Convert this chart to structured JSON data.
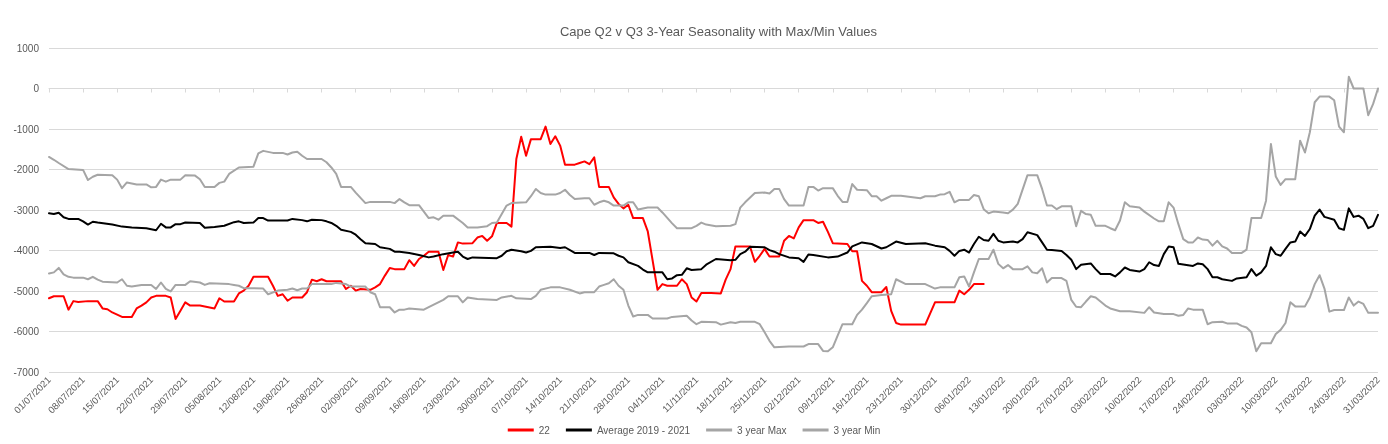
{
  "chart_data": {
    "type": "line",
    "title": "Cape Q2 v Q3 3-Year Seasonality with Max/Min Values",
    "xlim": [
      "2021-07-01",
      "2022-03-31"
    ],
    "xticks": [
      {
        "value": "2021-07-01",
        "label": "01/07/2021"
      },
      {
        "value": "2021-07-08",
        "label": "08/07/2021"
      },
      {
        "value": "2021-07-15",
        "label": "15/07/2021"
      },
      {
        "value": "2021-07-22",
        "label": "22/07/2021"
      },
      {
        "value": "2021-07-29",
        "label": "29/07/2021"
      },
      {
        "value": "2021-08-05",
        "label": "05/08/2021"
      },
      {
        "value": "2021-08-12",
        "label": "12/08/2021"
      },
      {
        "value": "2021-08-19",
        "label": "19/08/2021"
      },
      {
        "value": "2021-08-26",
        "label": "26/08/2021"
      },
      {
        "value": "2021-09-02",
        "label": "02/09/2021"
      },
      {
        "value": "2021-09-09",
        "label": "09/09/2021"
      },
      {
        "value": "2021-09-16",
        "label": "16/09/2021"
      },
      {
        "value": "2021-09-23",
        "label": "23/09/2021"
      },
      {
        "value": "2021-09-30",
        "label": "30/09/2021"
      },
      {
        "value": "2021-10-07",
        "label": "07/10/2021"
      },
      {
        "value": "2021-10-14",
        "label": "14/10/2021"
      },
      {
        "value": "2021-10-21",
        "label": "21/10/2021"
      },
      {
        "value": "2021-10-28",
        "label": "28/10/2021"
      },
      {
        "value": "2021-11-04",
        "label": "04/11/2021"
      },
      {
        "value": "2021-11-11",
        "label": "11/11/2021"
      },
      {
        "value": "2021-11-18",
        "label": "18/11/2021"
      },
      {
        "value": "2021-11-25",
        "label": "25/11/2021"
      },
      {
        "value": "2021-12-02",
        "label": "02/12/2021"
      },
      {
        "value": "2021-12-09",
        "label": "09/12/2021"
      },
      {
        "value": "2021-12-16",
        "label": "16/12/2021"
      },
      {
        "value": "2021-12-23",
        "label": "23/12/2021"
      },
      {
        "value": "2021-12-30",
        "label": "30/12/2021"
      },
      {
        "value": "2022-01-06",
        "label": "06/01/2022"
      },
      {
        "value": "2022-01-13",
        "label": "13/01/2022"
      },
      {
        "value": "2022-01-20",
        "label": "20/01/2022"
      },
      {
        "value": "2022-01-27",
        "label": "27/01/2022"
      },
      {
        "value": "2022-02-03",
        "label": "03/02/2022"
      },
      {
        "value": "2022-02-10",
        "label": "10/02/2022"
      },
      {
        "value": "2022-02-17",
        "label": "17/02/2022"
      },
      {
        "value": "2022-02-24",
        "label": "24/02/2022"
      },
      {
        "value": "2022-03-03",
        "label": "03/03/2022"
      },
      {
        "value": "2022-03-10",
        "label": "10/03/2022"
      },
      {
        "value": "2022-03-17",
        "label": "17/03/2022"
      },
      {
        "value": "2022-03-24",
        "label": "24/03/2022"
      },
      {
        "value": "2022-03-31",
        "label": "31/03/2022"
      }
    ],
    "ylim": [
      -7000,
      1000
    ],
    "yticks": [
      -7000,
      -6000,
      -5000,
      -4000,
      -3000,
      -2000,
      -1000,
      0,
      1000
    ],
    "grid": "y",
    "legend": "bottom",
    "marker": "none",
    "series": [
      {
        "name": "22",
        "color": "#ff0000",
        "x": [
          "2021-07-01",
          "2021-07-02",
          "2021-07-04",
          "2021-07-05",
          "2021-07-06",
          "2021-07-07",
          "2021-07-09",
          "2021-07-11",
          "2021-07-12",
          "2021-07-13",
          "2021-07-14",
          "2021-07-16",
          "2021-07-18",
          "2021-07-19",
          "2021-07-20",
          "2021-07-21",
          "2021-07-22",
          "2021-07-23",
          "2021-07-25",
          "2021-07-26",
          "2021-07-27",
          "2021-07-28",
          "2021-07-29",
          "2021-07-30",
          "2021-08-01",
          "2021-08-04",
          "2021-08-05",
          "2021-08-06",
          "2021-08-08",
          "2021-08-09",
          "2021-08-10",
          "2021-08-11",
          "2021-08-12",
          "2021-08-15",
          "2021-08-16",
          "2021-08-17",
          "2021-08-18",
          "2021-08-19",
          "2021-08-20",
          "2021-08-22",
          "2021-08-23",
          "2021-08-24",
          "2021-08-25",
          "2021-08-26",
          "2021-08-27",
          "2021-08-30",
          "2021-08-31",
          "2021-09-01",
          "2021-09-02",
          "2021-09-03",
          "2021-09-05",
          "2021-09-06",
          "2021-09-07",
          "2021-09-08",
          "2021-09-09",
          "2021-09-10",
          "2021-09-12",
          "2021-09-13",
          "2021-09-14",
          "2021-09-15",
          "2021-09-16",
          "2021-09-17",
          "2021-09-19",
          "2021-09-20",
          "2021-09-21",
          "2021-09-22",
          "2021-09-23",
          "2021-09-24",
          "2021-09-26",
          "2021-09-27",
          "2021-09-28",
          "2021-09-29",
          "2021-09-30",
          "2021-10-01",
          "2021-10-03",
          "2021-10-04",
          "2021-10-05",
          "2021-10-06",
          "2021-10-07",
          "2021-10-08",
          "2021-10-10",
          "2021-10-11",
          "2021-10-12",
          "2021-10-13",
          "2021-10-14",
          "2021-10-15",
          "2021-10-17",
          "2021-10-18",
          "2021-10-19",
          "2021-10-20",
          "2021-10-21",
          "2021-10-22",
          "2021-10-24",
          "2021-10-25",
          "2021-10-26",
          "2021-10-27",
          "2021-10-28",
          "2021-10-29",
          "2021-10-31",
          "2021-11-01",
          "2021-11-03",
          "2021-11-04",
          "2021-11-05",
          "2021-11-07",
          "2021-11-08",
          "2021-11-09",
          "2021-11-10",
          "2021-11-11",
          "2021-11-12",
          "2021-11-14",
          "2021-11-16",
          "2021-11-17",
          "2021-11-18",
          "2021-11-19",
          "2021-11-22",
          "2021-11-23",
          "2021-11-24",
          "2021-11-25",
          "2021-11-26",
          "2021-11-28",
          "2021-11-29",
          "2021-11-30",
          "2021-12-01",
          "2021-12-02",
          "2021-12-03",
          "2021-12-05",
          "2021-12-06",
          "2021-12-07",
          "2021-12-08",
          "2021-12-09",
          "2021-12-12",
          "2021-12-13",
          "2021-12-14",
          "2021-12-15",
          "2021-12-16",
          "2021-12-17",
          "2021-12-19",
          "2021-12-20",
          "2021-12-21",
          "2021-12-22",
          "2021-12-23",
          "2021-12-28",
          "2021-12-30",
          "2022-01-03",
          "2022-01-04",
          "2022-01-05",
          "2022-01-06",
          "2022-01-07",
          "2022-01-09"
        ],
        "values": [
          -5180,
          -5130,
          -5130,
          -5460,
          -5250,
          -5270,
          -5250,
          -5250,
          -5430,
          -5450,
          -5530,
          -5640,
          -5640,
          -5430,
          -5360,
          -5280,
          -5160,
          -5120,
          -5120,
          -5160,
          -5690,
          -5490,
          -5280,
          -5360,
          -5360,
          -5430,
          -5180,
          -5260,
          -5260,
          -5060,
          -4990,
          -4870,
          -4650,
          -4650,
          -4870,
          -5120,
          -5080,
          -5240,
          -5160,
          -5160,
          -5030,
          -4720,
          -4760,
          -4710,
          -4760,
          -4760,
          -4950,
          -4870,
          -4990,
          -4950,
          -4970,
          -4910,
          -4830,
          -4620,
          -4430,
          -4460,
          -4460,
          -4240,
          -4380,
          -4210,
          -4130,
          -4030,
          -4030,
          -4480,
          -4110,
          -4150,
          -3800,
          -3830,
          -3820,
          -3680,
          -3640,
          -3760,
          -3650,
          -3320,
          -3320,
          -3410,
          -1740,
          -1190,
          -1660,
          -1250,
          -1250,
          -940,
          -1370,
          -1180,
          -1410,
          -1880,
          -1880,
          -1840,
          -1800,
          -1870,
          -1700,
          -2430,
          -2430,
          -2690,
          -2850,
          -2960,
          -2870,
          -3200,
          -3200,
          -3530,
          -4970,
          -4830,
          -4870,
          -4870,
          -4710,
          -4830,
          -5160,
          -5260,
          -5050,
          -5050,
          -5060,
          -4720,
          -4460,
          -3900,
          -3900,
          -4280,
          -4130,
          -3960,
          -4150,
          -4150,
          -3760,
          -3640,
          -3700,
          -3430,
          -3250,
          -3250,
          -3320,
          -3290,
          -3540,
          -3820,
          -3840,
          -4020,
          -4020,
          -4750,
          -4870,
          -5030,
          -5030,
          -4900,
          -5490,
          -5790,
          -5830,
          -5830,
          -5280,
          -5280,
          -4990,
          -5080,
          -4970,
          -4830,
          -4830
        ]
      },
      {
        "name": "Average 2019 - 2021",
        "color": "#000000",
        "x": [
          "2021-07-01",
          "2021-07-02",
          "2021-07-03",
          "2021-07-04",
          "2021-07-05",
          "2021-07-07",
          "2021-07-08",
          "2021-07-09",
          "2021-07-10",
          "2021-07-11",
          "2021-07-14",
          "2021-07-16",
          "2021-07-18",
          "2021-07-21",
          "2021-07-23",
          "2021-07-24",
          "2021-07-25",
          "2021-07-26",
          "2021-07-27",
          "2021-07-28",
          "2021-07-29",
          "2021-08-01",
          "2021-08-02",
          "2021-08-04",
          "2021-08-06",
          "2021-08-08",
          "2021-08-09",
          "2021-08-10",
          "2021-08-12",
          "2021-08-13",
          "2021-08-14",
          "2021-08-15",
          "2021-08-19",
          "2021-08-20",
          "2021-08-22",
          "2021-08-23",
          "2021-08-24",
          "2021-08-26",
          "2021-08-27",
          "2021-08-28",
          "2021-08-29",
          "2021-08-30",
          "2021-09-01",
          "2021-09-02",
          "2021-09-03",
          "2021-09-04",
          "2021-09-06",
          "2021-09-07",
          "2021-09-09",
          "2021-09-10",
          "2021-09-11",
          "2021-09-13",
          "2021-09-15",
          "2021-09-17",
          "2021-09-18",
          "2021-09-20",
          "2021-09-22",
          "2021-09-23",
          "2021-09-24",
          "2021-09-25",
          "2021-09-26",
          "2021-10-01",
          "2021-10-02",
          "2021-10-03",
          "2021-10-04",
          "2021-10-06",
          "2021-10-07",
          "2021-10-08",
          "2021-10-09",
          "2021-10-12",
          "2021-10-14",
          "2021-10-15",
          "2021-10-17",
          "2021-10-20",
          "2021-10-21",
          "2021-10-22",
          "2021-10-25",
          "2021-10-26",
          "2021-10-27",
          "2021-10-28",
          "2021-10-30",
          "2021-10-31",
          "2021-11-01",
          "2021-11-04",
          "2021-11-05",
          "2021-11-06",
          "2021-11-07",
          "2021-11-08",
          "2021-11-09",
          "2021-11-10",
          "2021-11-12",
          "2021-11-13",
          "2021-11-15",
          "2021-11-18",
          "2021-11-19",
          "2021-11-20",
          "2021-11-21",
          "2021-11-22",
          "2021-11-25",
          "2021-11-26",
          "2021-11-27",
          "2021-11-28",
          "2021-11-30",
          "2021-12-02",
          "2021-12-03",
          "2021-12-04",
          "2021-12-05",
          "2021-12-08",
          "2021-12-10",
          "2021-12-12",
          "2021-12-13",
          "2021-12-15",
          "2021-12-17",
          "2021-12-19",
          "2021-12-20",
          "2021-12-22",
          "2021-12-24",
          "2021-12-28",
          "2021-12-30",
          "2022-01-01",
          "2022-01-02",
          "2022-01-03",
          "2022-01-04",
          "2022-01-05",
          "2022-01-06",
          "2022-01-07",
          "2022-01-08",
          "2022-01-09",
          "2022-01-10",
          "2022-01-11",
          "2022-01-12",
          "2022-01-13",
          "2022-01-15",
          "2022-01-16",
          "2022-01-17",
          "2022-01-18",
          "2022-01-20",
          "2022-01-21",
          "2022-01-22",
          "2022-01-23",
          "2022-01-25",
          "2022-01-26",
          "2022-01-27",
          "2022-01-28",
          "2022-01-29",
          "2022-01-31",
          "2022-02-01",
          "2022-02-02",
          "2022-02-04",
          "2022-02-05",
          "2022-02-06",
          "2022-02-07",
          "2022-02-08",
          "2022-02-10",
          "2022-02-11",
          "2022-02-12",
          "2022-02-13",
          "2022-02-14",
          "2022-02-15",
          "2022-02-16",
          "2022-02-17",
          "2022-02-18",
          "2022-02-21",
          "2022-02-22",
          "2022-02-23",
          "2022-02-24",
          "2022-02-25",
          "2022-02-26",
          "2022-02-27",
          "2022-03-01",
          "2022-03-02",
          "2022-03-04",
          "2022-03-05",
          "2022-03-06",
          "2022-03-07",
          "2022-03-08",
          "2022-03-09",
          "2022-03-10",
          "2022-03-11",
          "2022-03-12",
          "2022-03-13",
          "2022-03-14",
          "2022-03-15",
          "2022-03-16",
          "2022-03-17",
          "2022-03-18",
          "2022-03-19",
          "2022-03-20",
          "2022-03-22",
          "2022-03-23",
          "2022-03-24",
          "2022-03-25",
          "2022-03-26",
          "2022-03-27",
          "2022-03-28",
          "2022-03-29",
          "2022-03-30",
          "2022-03-31"
        ],
        "values": [
          -3080,
          -3100,
          -3070,
          -3180,
          -3220,
          -3220,
          -3280,
          -3360,
          -3290,
          -3310,
          -3360,
          -3410,
          -3430,
          -3450,
          -3500,
          -3340,
          -3430,
          -3430,
          -3350,
          -3350,
          -3310,
          -3320,
          -3440,
          -3420,
          -3390,
          -3300,
          -3280,
          -3320,
          -3310,
          -3200,
          -3200,
          -3260,
          -3260,
          -3220,
          -3250,
          -3280,
          -3240,
          -3250,
          -3280,
          -3320,
          -3390,
          -3490,
          -3540,
          -3610,
          -3720,
          -3820,
          -3840,
          -3920,
          -3960,
          -4030,
          -4030,
          -4060,
          -4110,
          -4170,
          -4150,
          -4090,
          -4050,
          -4030,
          -4150,
          -4210,
          -4170,
          -4190,
          -4130,
          -4020,
          -3980,
          -4020,
          -4050,
          -4010,
          -3920,
          -3910,
          -3940,
          -3920,
          -4060,
          -4060,
          -4110,
          -4060,
          -4070,
          -4130,
          -4170,
          -4290,
          -4380,
          -4470,
          -4540,
          -4540,
          -4710,
          -4690,
          -4610,
          -4600,
          -4440,
          -4480,
          -4460,
          -4350,
          -4210,
          -4240,
          -4230,
          -4090,
          -4030,
          -3910,
          -3920,
          -3990,
          -4030,
          -4090,
          -4170,
          -4190,
          -4280,
          -4100,
          -4110,
          -4170,
          -4150,
          -4050,
          -3900,
          -3800,
          -3840,
          -3950,
          -3920,
          -3780,
          -3840,
          -3820,
          -3880,
          -3920,
          -4010,
          -4130,
          -4010,
          -3980,
          -4050,
          -3840,
          -3660,
          -3740,
          -3760,
          -3590,
          -3760,
          -3800,
          -3780,
          -3800,
          -3720,
          -3550,
          -3620,
          -3800,
          -3980,
          -3990,
          -4010,
          -4110,
          -4230,
          -4460,
          -4350,
          -4320,
          -4460,
          -4580,
          -4580,
          -4640,
          -4540,
          -4420,
          -4480,
          -4520,
          -4460,
          -4290,
          -4360,
          -4380,
          -4090,
          -3900,
          -3920,
          -4330,
          -4380,
          -4320,
          -4340,
          -4460,
          -4660,
          -4660,
          -4710,
          -4750,
          -4690,
          -4660,
          -4460,
          -4620,
          -4540,
          -4380,
          -3920,
          -4090,
          -4130,
          -3960,
          -3800,
          -3780,
          -3530,
          -3640,
          -3470,
          -3140,
          -2990,
          -3170,
          -3240,
          -3450,
          -3490,
          -2960,
          -3170,
          -3140,
          -3220,
          -3450,
          -3390,
          -3120
        ]
      },
      {
        "name": "3 year Max",
        "color": "#a5a5a5",
        "x": [
          "2021-07-01",
          "2021-07-02",
          "2021-07-03",
          "2021-07-05",
          "2021-07-08",
          "2021-07-09",
          "2021-07-10",
          "2021-07-11",
          "2021-07-14",
          "2021-07-15",
          "2021-07-16",
          "2021-07-17",
          "2021-07-19",
          "2021-07-21",
          "2021-07-22",
          "2021-07-23",
          "2021-07-24",
          "2021-07-25",
          "2021-07-26",
          "2021-07-28",
          "2021-07-29",
          "2021-07-31",
          "2021-08-01",
          "2021-08-02",
          "2021-08-04",
          "2021-08-05",
          "2021-08-06",
          "2021-08-07",
          "2021-08-09",
          "2021-08-12",
          "2021-08-13",
          "2021-08-14",
          "2021-08-16",
          "2021-08-18",
          "2021-08-19",
          "2021-08-20",
          "2021-08-21",
          "2021-08-22",
          "2021-08-23",
          "2021-08-26",
          "2021-08-27",
          "2021-08-28",
          "2021-08-29",
          "2021-08-30",
          "2021-09-01",
          "2021-09-02",
          "2021-09-04",
          "2021-09-05",
          "2021-09-09",
          "2021-09-10",
          "2021-09-11",
          "2021-09-12",
          "2021-09-13",
          "2021-09-15",
          "2021-09-16",
          "2021-09-17",
          "2021-09-18",
          "2021-09-19",
          "2021-09-20",
          "2021-09-22",
          "2021-09-24",
          "2021-09-25",
          "2021-09-27",
          "2021-09-29",
          "2021-09-30",
          "2021-10-01",
          "2021-10-03",
          "2021-10-04",
          "2021-10-07",
          "2021-10-08",
          "2021-10-09",
          "2021-10-10",
          "2021-10-11",
          "2021-10-13",
          "2021-10-14",
          "2021-10-15",
          "2021-10-16",
          "2021-10-17",
          "2021-10-19",
          "2021-10-20",
          "2021-10-21",
          "2021-10-22",
          "2021-10-23",
          "2021-10-24",
          "2021-10-25",
          "2021-10-27",
          "2021-10-28",
          "2021-10-29",
          "2021-10-30",
          "2021-11-01",
          "2021-11-03",
          "2021-11-04",
          "2021-11-06",
          "2021-11-07",
          "2021-11-10",
          "2021-11-11",
          "2021-11-12",
          "2021-11-13",
          "2021-11-15",
          "2021-11-18",
          "2021-11-19",
          "2021-11-20",
          "2021-11-21",
          "2021-11-23",
          "2021-11-25",
          "2021-11-26",
          "2021-11-27",
          "2021-11-28",
          "2021-11-29",
          "2021-11-30",
          "2021-12-03",
          "2021-12-04",
          "2021-12-05",
          "2021-12-06",
          "2021-12-07",
          "2021-12-09",
          "2021-12-10",
          "2021-12-11",
          "2021-12-12",
          "2021-12-13",
          "2021-12-14",
          "2021-12-16",
          "2021-12-17",
          "2021-12-18",
          "2021-12-19",
          "2021-12-20",
          "2021-12-21",
          "2021-12-23",
          "2021-12-27",
          "2021-12-28",
          "2021-12-30",
          "2021-12-31",
          "2022-01-01",
          "2022-01-02",
          "2022-01-03",
          "2022-01-04",
          "2022-01-06",
          "2022-01-07",
          "2022-01-08",
          "2022-01-09",
          "2022-01-10",
          "2022-01-11",
          "2022-01-13",
          "2022-01-14",
          "2022-01-15",
          "2022-01-16",
          "2022-01-18",
          "2022-01-20",
          "2022-01-21",
          "2022-01-22",
          "2022-01-23",
          "2022-01-24",
          "2022-01-25",
          "2022-01-27",
          "2022-01-28",
          "2022-01-29",
          "2022-01-30",
          "2022-01-31",
          "2022-02-01",
          "2022-02-03",
          "2022-02-04",
          "2022-02-05",
          "2022-02-06",
          "2022-02-07",
          "2022-02-08",
          "2022-02-10",
          "2022-02-11",
          "2022-02-13",
          "2022-02-14",
          "2022-02-15",
          "2022-02-16",
          "2022-02-17",
          "2022-02-18",
          "2022-02-19",
          "2022-02-20",
          "2022-02-21",
          "2022-02-22",
          "2022-02-23",
          "2022-02-24",
          "2022-02-25",
          "2022-02-26",
          "2022-02-27",
          "2022-02-28",
          "2022-03-01",
          "2022-03-03",
          "2022-03-04",
          "2022-03-05",
          "2022-03-07",
          "2022-03-08",
          "2022-03-09",
          "2022-03-10",
          "2022-03-11",
          "2022-03-12",
          "2022-03-14",
          "2022-03-15",
          "2022-03-16",
          "2022-03-17",
          "2022-03-18",
          "2022-03-19",
          "2022-03-21",
          "2022-03-22",
          "2022-03-23",
          "2022-03-24",
          "2022-03-25",
          "2022-03-26",
          "2022-03-28",
          "2022-03-29",
          "2022-03-30",
          "2022-03-31"
        ],
        "values": [
          -1690,
          -1760,
          -1840,
          -1990,
          -2010,
          -2260,
          -2180,
          -2130,
          -2140,
          -2250,
          -2460,
          -2320,
          -2370,
          -2370,
          -2440,
          -2430,
          -2250,
          -2300,
          -2250,
          -2250,
          -2140,
          -2150,
          -2240,
          -2430,
          -2430,
          -2330,
          -2300,
          -2110,
          -1950,
          -1930,
          -1600,
          -1540,
          -1590,
          -1590,
          -1630,
          -1580,
          -1560,
          -1660,
          -1740,
          -1740,
          -1820,
          -1950,
          -2110,
          -2430,
          -2430,
          -2570,
          -2830,
          -2800,
          -2800,
          -2830,
          -2730,
          -2810,
          -2880,
          -2880,
          -3040,
          -3200,
          -3180,
          -3240,
          -3140,
          -3140,
          -3320,
          -3430,
          -3430,
          -3400,
          -3320,
          -3310,
          -2890,
          -2830,
          -2810,
          -2660,
          -2480,
          -2580,
          -2620,
          -2620,
          -2580,
          -2500,
          -2630,
          -2730,
          -2710,
          -2710,
          -2870,
          -2810,
          -2770,
          -2810,
          -2890,
          -2890,
          -2810,
          -2810,
          -2990,
          -2940,
          -2940,
          -3060,
          -3330,
          -3450,
          -3450,
          -3390,
          -3310,
          -3360,
          -3400,
          -3390,
          -3350,
          -2940,
          -2810,
          -2580,
          -2570,
          -2590,
          -2480,
          -2480,
          -2730,
          -2890,
          -2890,
          -2430,
          -2430,
          -2520,
          -2460,
          -2460,
          -2650,
          -2800,
          -2800,
          -2360,
          -2500,
          -2510,
          -2660,
          -2660,
          -2770,
          -2710,
          -2650,
          -2650,
          -2710,
          -2660,
          -2660,
          -2620,
          -2610,
          -2550,
          -2810,
          -2750,
          -2750,
          -2630,
          -2660,
          -2980,
          -3080,
          -3040,
          -3060,
          -3080,
          -2990,
          -2850,
          -2140,
          -2140,
          -2480,
          -2890,
          -2890,
          -2980,
          -2910,
          -2910,
          -3400,
          -3020,
          -3100,
          -3120,
          -3390,
          -3390,
          -3450,
          -3500,
          -3260,
          -2810,
          -2910,
          -2940,
          -3040,
          -3210,
          -3280,
          -3280,
          -2810,
          -2940,
          -3350,
          -3720,
          -3800,
          -3800,
          -3680,
          -3730,
          -3740,
          -3880,
          -3760,
          -3900,
          -3950,
          -4060,
          -4060,
          -3980,
          -3200,
          -3200,
          -2770,
          -1370,
          -2170,
          -2380,
          -2240,
          -2240,
          -1290,
          -1580,
          -1080,
          -340,
          -200,
          -200,
          -290,
          -940,
          -1080,
          290,
          0,
          0,
          -660,
          -380,
          0
        ]
      },
      {
        "name": "3 year Min",
        "color": "#a5a5a5",
        "x": [
          "2021-07-01",
          "2021-07-02",
          "2021-07-03",
          "2021-07-04",
          "2021-07-05",
          "2021-07-06",
          "2021-07-08",
          "2021-07-09",
          "2021-07-10",
          "2021-07-11",
          "2021-07-12",
          "2021-07-15",
          "2021-07-16",
          "2021-07-17",
          "2021-07-18",
          "2021-07-20",
          "2021-07-22",
          "2021-07-23",
          "2021-07-24",
          "2021-07-25",
          "2021-07-26",
          "2021-07-27",
          "2021-07-29",
          "2021-07-30",
          "2021-08-01",
          "2021-08-02",
          "2021-08-03",
          "2021-08-07",
          "2021-08-08",
          "2021-08-09",
          "2021-08-10",
          "2021-08-12",
          "2021-08-14",
          "2021-08-15",
          "2021-08-17",
          "2021-08-19",
          "2021-08-20",
          "2021-08-21",
          "2021-08-22",
          "2021-08-23",
          "2021-08-24",
          "2021-08-28",
          "2021-08-29",
          "2021-08-31",
          "2021-09-01",
          "2021-09-04",
          "2021-09-05",
          "2021-09-06",
          "2021-09-07",
          "2021-09-09",
          "2021-09-10",
          "2021-09-11",
          "2021-09-12",
          "2021-09-13",
          "2021-09-16",
          "2021-09-17",
          "2021-09-20",
          "2021-09-21",
          "2021-09-23",
          "2021-09-24",
          "2021-09-25",
          "2021-09-27",
          "2021-10-01",
          "2021-10-02",
          "2021-10-04",
          "2021-10-05",
          "2021-10-08",
          "2021-10-09",
          "2021-10-10",
          "2021-10-12",
          "2021-10-14",
          "2021-10-16",
          "2021-10-18",
          "2021-10-19",
          "2021-10-21",
          "2021-10-22",
          "2021-10-23",
          "2021-10-24",
          "2021-10-25",
          "2021-10-26",
          "2021-10-27",
          "2021-10-28",
          "2021-10-29",
          "2021-10-30",
          "2021-11-01",
          "2021-11-02",
          "2021-11-05",
          "2021-11-06",
          "2021-11-09",
          "2021-11-10",
          "2021-11-11",
          "2021-11-12",
          "2021-11-15",
          "2021-11-16",
          "2021-11-18",
          "2021-11-19",
          "2021-11-20",
          "2021-11-23",
          "2021-11-24",
          "2021-11-25",
          "2021-11-26",
          "2021-11-27",
          "2021-11-30",
          "2021-12-03",
          "2021-12-04",
          "2021-12-06",
          "2021-12-07",
          "2021-12-08",
          "2021-12-09",
          "2021-12-10",
          "2021-12-11",
          "2021-12-13",
          "2021-12-14",
          "2021-12-15",
          "2021-12-16",
          "2021-12-17",
          "2021-12-19",
          "2021-12-21",
          "2021-12-22",
          "2021-12-24",
          "2021-12-28",
          "2021-12-30",
          "2021-12-31",
          "2022-01-03",
          "2022-01-04",
          "2022-01-05",
          "2022-01-06",
          "2022-01-07",
          "2022-01-08",
          "2022-01-10",
          "2022-01-11",
          "2022-01-12",
          "2022-01-13",
          "2022-01-14",
          "2022-01-15",
          "2022-01-17",
          "2022-01-18",
          "2022-01-19",
          "2022-01-20",
          "2022-01-21",
          "2022-01-22",
          "2022-01-23",
          "2022-01-25",
          "2022-01-26",
          "2022-01-27",
          "2022-01-28",
          "2022-01-29",
          "2022-01-30",
          "2022-01-31",
          "2022-02-01",
          "2022-02-03",
          "2022-02-04",
          "2022-02-06",
          "2022-02-08",
          "2022-02-11",
          "2022-02-12",
          "2022-02-13",
          "2022-02-15",
          "2022-02-17",
          "2022-02-18",
          "2022-02-19",
          "2022-02-20",
          "2022-02-21",
          "2022-02-23",
          "2022-02-24",
          "2022-02-25",
          "2022-02-27",
          "2022-02-28",
          "2022-03-02",
          "2022-03-03",
          "2022-03-04",
          "2022-03-05",
          "2022-03-06",
          "2022-03-07",
          "2022-03-09",
          "2022-03-10",
          "2022-03-11",
          "2022-03-12",
          "2022-03-13",
          "2022-03-14",
          "2022-03-16",
          "2022-03-17",
          "2022-03-18",
          "2022-03-19",
          "2022-03-20",
          "2022-03-21",
          "2022-03-22",
          "2022-03-24",
          "2022-03-25",
          "2022-03-26",
          "2022-03-27",
          "2022-03-28",
          "2022-03-29",
          "2022-03-31"
        ],
        "values": [
          -4570,
          -4540,
          -4430,
          -4590,
          -4650,
          -4670,
          -4670,
          -4710,
          -4650,
          -4720,
          -4770,
          -4790,
          -4710,
          -4870,
          -4890,
          -4850,
          -4850,
          -4950,
          -4790,
          -4950,
          -5010,
          -4850,
          -4850,
          -4760,
          -4790,
          -4850,
          -4810,
          -4830,
          -4850,
          -4870,
          -4930,
          -4930,
          -4940,
          -5080,
          -4990,
          -4970,
          -4940,
          -4980,
          -4940,
          -4940,
          -4830,
          -4830,
          -4800,
          -4830,
          -4890,
          -4890,
          -5030,
          -5080,
          -5400,
          -5400,
          -5530,
          -5460,
          -5460,
          -5430,
          -5460,
          -5400,
          -5220,
          -5130,
          -5130,
          -5280,
          -5160,
          -5200,
          -5220,
          -5160,
          -5120,
          -5180,
          -5200,
          -5120,
          -4970,
          -4910,
          -4910,
          -4970,
          -5060,
          -5030,
          -5030,
          -4890,
          -4850,
          -4810,
          -4710,
          -4870,
          -4970,
          -5360,
          -5630,
          -5590,
          -5590,
          -5680,
          -5680,
          -5640,
          -5610,
          -5730,
          -5820,
          -5760,
          -5770,
          -5830,
          -5770,
          -5790,
          -5760,
          -5760,
          -5820,
          -6020,
          -6230,
          -6390,
          -6370,
          -6370,
          -6310,
          -6310,
          -6480,
          -6490,
          -6390,
          -6100,
          -5820,
          -5820,
          -5590,
          -5460,
          -5300,
          -5130,
          -5100,
          -5080,
          -4710,
          -4830,
          -4830,
          -4940,
          -4910,
          -4910,
          -4660,
          -4640,
          -4890,
          -4540,
          -4210,
          -4210,
          -3980,
          -4330,
          -4440,
          -4360,
          -4460,
          -4460,
          -4390,
          -4540,
          -4560,
          -4440,
          -4790,
          -4680,
          -4680,
          -4750,
          -5220,
          -5390,
          -5400,
          -5260,
          -5130,
          -5160,
          -5360,
          -5430,
          -5500,
          -5500,
          -5540,
          -5400,
          -5530,
          -5570,
          -5570,
          -5610,
          -5590,
          -5430,
          -5460,
          -5460,
          -5820,
          -5770,
          -5760,
          -5800,
          -5800,
          -5860,
          -5900,
          -6020,
          -6490,
          -6290,
          -6290,
          -6060,
          -5960,
          -5790,
          -5280,
          -5380,
          -5380,
          -5160,
          -4830,
          -4610,
          -4940,
          -5510,
          -5470,
          -5470,
          -5160,
          -5360,
          -5260,
          -5320,
          -5540,
          -5540
        ]
      }
    ]
  }
}
